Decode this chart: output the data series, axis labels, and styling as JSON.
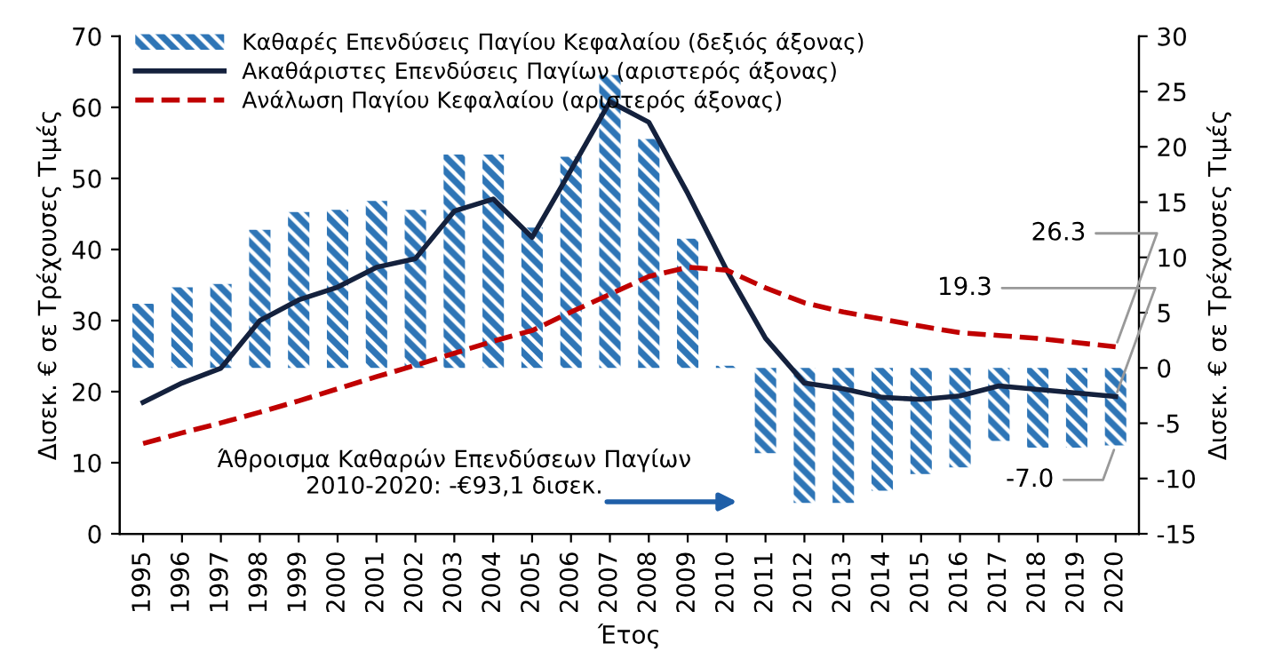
{
  "chart_data": {
    "type": "bar",
    "xlabel": "Έτος",
    "ylabel": "Δισεκ. € σε Τρέχουσες Τιμές",
    "y2label": "Δισεκ. € σε Τρέχουσες Τιμές",
    "categories": [
      "1995",
      "1996",
      "1997",
      "1998",
      "1999",
      "2000",
      "2001",
      "2002",
      "2003",
      "2004",
      "2005",
      "2006",
      "2007",
      "2008",
      "2009",
      "2010",
      "2011",
      "2012",
      "2013",
      "2014",
      "2015",
      "2016",
      "2017",
      "2018",
      "2019",
      "2020"
    ],
    "series": [
      {
        "name": "Καθαρές Επενδύσεις Παγίου Κεφαλαίου (δεξιός άξονας)",
        "axis": "y2",
        "color": "#2e75b6",
        "values": [
          5.8,
          7.3,
          7.6,
          12.5,
          14.1,
          14.3,
          15.1,
          14.3,
          19.3,
          19.3,
          12.7,
          19.1,
          26.5,
          20.7,
          11.7,
          0.2,
          -7.7,
          -12.2,
          -12.2,
          -11.1,
          -9.6,
          -9.0,
          -6.6,
          -7.2,
          -7.2,
          -7.0
        ],
        "value_labels": [
          null,
          null,
          null,
          null,
          null,
          null,
          null,
          null,
          null,
          null,
          null,
          null,
          null,
          null,
          null,
          null,
          null,
          null,
          null,
          null,
          null,
          null,
          null,
          null,
          null,
          "-7.0"
        ]
      },
      {
        "name": "Ακαθάριστες Επενδύσεις Παγίων (αριστερός άξονας)",
        "type": "line",
        "color": "#14213d",
        "line_style": "solid",
        "values": [
          18.5,
          21.2,
          23.3,
          30.0,
          32.9,
          34.7,
          37.5,
          38.7,
          45.4,
          47.1,
          41.7,
          51.2,
          60.8,
          57.9,
          47.9,
          37.1,
          27.5,
          21.2,
          20.4,
          19.2,
          18.9,
          19.4,
          20.8,
          20.3,
          19.8,
          19.3
        ],
        "value_labels": [
          null,
          null,
          null,
          null,
          null,
          null,
          null,
          null,
          null,
          null,
          null,
          null,
          null,
          null,
          null,
          null,
          null,
          null,
          null,
          null,
          null,
          null,
          null,
          null,
          null,
          "19.3"
        ]
      },
      {
        "name": "Ανάλωση Παγίου Κεφαλαίου (αριστερός άξονας)",
        "type": "line",
        "color": "#c00000",
        "line_style": "dashed",
        "values": [
          12.7,
          14.2,
          15.6,
          17.1,
          18.7,
          20.4,
          22.1,
          23.7,
          25.4,
          27.1,
          28.6,
          31.2,
          33.7,
          36.2,
          37.5,
          37.1,
          34.6,
          32.5,
          31.2,
          30.2,
          29.2,
          28.3,
          27.9,
          27.5,
          26.9,
          26.3
        ],
        "value_labels": [
          null,
          null,
          null,
          null,
          null,
          null,
          null,
          null,
          null,
          null,
          null,
          null,
          null,
          null,
          null,
          null,
          null,
          null,
          null,
          null,
          null,
          null,
          null,
          null,
          null,
          "26.3"
        ]
      }
    ],
    "ylim": [
      0,
      70
    ],
    "yticks": [
      0,
      10,
      20,
      30,
      40,
      50,
      60,
      70
    ],
    "y2lim": [
      -15,
      30
    ],
    "y2ticks": [
      -15,
      -10,
      -5,
      0,
      5,
      10,
      15,
      20,
      25,
      30
    ],
    "annotations": [
      "Άθροισμα Καθαρών Επενδύσεων Παγίων\n2010-2020: -€93,1 δισεκ."
    ],
    "legend": "top left",
    "grid": false,
    "marker": "none"
  }
}
